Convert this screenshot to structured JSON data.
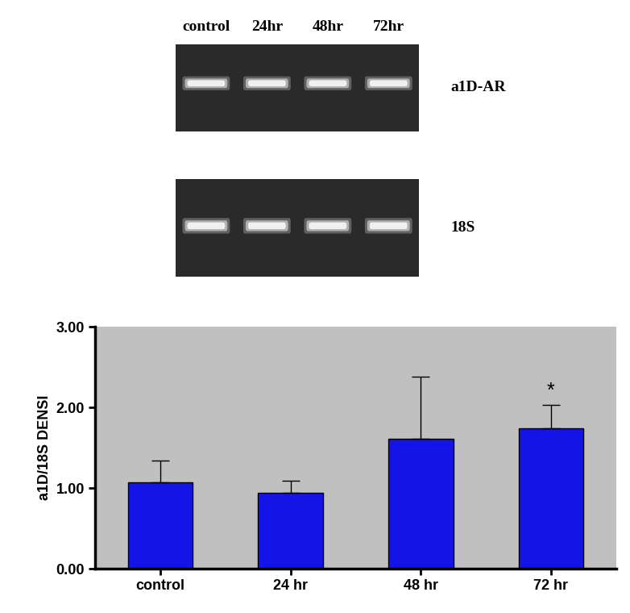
{
  "chart_data": {
    "type": "bar",
    "categories": [
      "control",
      "24 hr",
      "48 hr",
      "72 hr"
    ],
    "values": [
      1.07,
      0.94,
      1.61,
      1.74
    ],
    "errors": [
      0.27,
      0.15,
      0.77,
      0.29
    ],
    "color": "#1414e6",
    "y_label": "a1D/18S DENSI",
    "ylim": [
      0,
      3
    ],
    "yticks": [
      {
        "value": 0,
        "label": "0.00"
      },
      {
        "value": 1,
        "label": "1.00"
      },
      {
        "value": 2,
        "label": "2.00"
      },
      {
        "value": 3,
        "label": "3.00"
      }
    ],
    "grid": false,
    "annotations": [
      {
        "category": "72 hr",
        "text": "*"
      }
    ]
  },
  "gel": {
    "lanes": [
      "control",
      "24hr",
      "48hr",
      "72hr"
    ],
    "panels": [
      {
        "label": "a1D-AR"
      },
      {
        "label": "18S"
      }
    ]
  }
}
